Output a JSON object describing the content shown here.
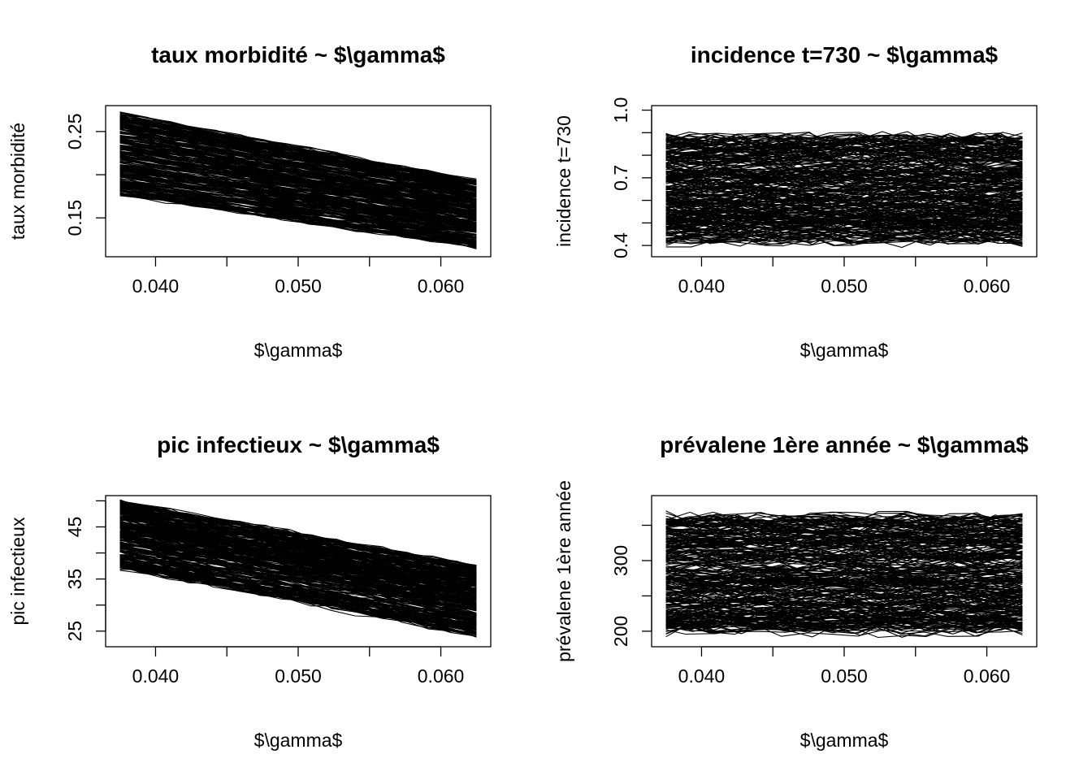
{
  "chart_data": [
    {
      "type": "line",
      "title": "taux morbidité ~ $\\gamma$",
      "xlabel": "$\\gamma$",
      "ylabel": "taux morbidité",
      "xlim": [
        0.0365,
        0.0635
      ],
      "ylim": [
        0.105,
        0.28
      ],
      "xticks": [
        0.04,
        0.045,
        0.05,
        0.055,
        0.06
      ],
      "xtick_labels": [
        "0.040",
        "",
        "0.050",
        "",
        "0.060"
      ],
      "yticks": [
        0.15,
        0.2,
        0.25
      ],
      "ytick_labels": [
        "0.15",
        "",
        "0.25"
      ],
      "grid": false,
      "series_count": 300,
      "x_range": [
        0.0375,
        0.0625
      ],
      "band_start": [
        0.176,
        0.272
      ],
      "band_end": [
        0.115,
        0.195
      ],
      "noise": 0.002,
      "color": "#000000"
    },
    {
      "type": "line",
      "title": "incidence t=730 ~ $\\gamma$",
      "xlabel": "$\\gamma$",
      "ylabel": "incidence t=730",
      "xlim": [
        0.0365,
        0.0635
      ],
      "ylim": [
        0.35,
        1.02
      ],
      "xticks": [
        0.04,
        0.045,
        0.05,
        0.055,
        0.06
      ],
      "xtick_labels": [
        "0.040",
        "",
        "0.050",
        "",
        "0.060"
      ],
      "yticks": [
        0.4,
        0.5,
        0.6,
        0.7,
        0.8,
        0.9,
        1.0
      ],
      "ytick_labels": [
        "0.4",
        "",
        "",
        "0.7",
        "",
        "",
        "1.0"
      ],
      "grid": false,
      "series_count": 300,
      "x_range": [
        0.0375,
        0.0625
      ],
      "band_start": [
        0.42,
        0.88
      ],
      "band_end": [
        0.42,
        0.88
      ],
      "noise": 0.03,
      "color": "#000000"
    },
    {
      "type": "line",
      "title": "pic infectieux ~ $\\gamma$",
      "xlabel": "$\\gamma$",
      "ylabel": "pic infectieux",
      "xlim": [
        0.0365,
        0.0635
      ],
      "ylim": [
        22,
        51
      ],
      "xticks": [
        0.04,
        0.045,
        0.05,
        0.055,
        0.06
      ],
      "xtick_labels": [
        "0.040",
        "",
        "0.050",
        "",
        "0.060"
      ],
      "yticks": [
        25,
        30,
        35,
        40,
        45,
        50
      ],
      "ytick_labels": [
        "25",
        "",
        "35",
        "",
        "45",
        ""
      ],
      "grid": false,
      "series_count": 300,
      "x_range": [
        0.0375,
        0.0625
      ],
      "band_start": [
        37,
        50
      ],
      "band_end": [
        24,
        37.5
      ],
      "noise": 0.5,
      "color": "#000000"
    },
    {
      "type": "line",
      "title": "prévalene 1ère année ~ $\\gamma$",
      "xlabel": "$\\gamma$",
      "ylabel": "prévalene 1ère année",
      "xlim": [
        0.0365,
        0.0635
      ],
      "ylim": [
        178,
        392
      ],
      "xticks": [
        0.04,
        0.045,
        0.05,
        0.055,
        0.06
      ],
      "xtick_labels": [
        "0.040",
        "",
        "0.050",
        "",
        "0.060"
      ],
      "yticks": [
        200,
        250,
        300,
        350
      ],
      "ytick_labels": [
        "200",
        "",
        "300",
        ""
      ],
      "grid": false,
      "series_count": 300,
      "x_range": [
        0.0375,
        0.0625
      ],
      "band_start": [
        200,
        362
      ],
      "band_end": [
        200,
        362
      ],
      "noise": 9,
      "color": "#000000"
    }
  ]
}
